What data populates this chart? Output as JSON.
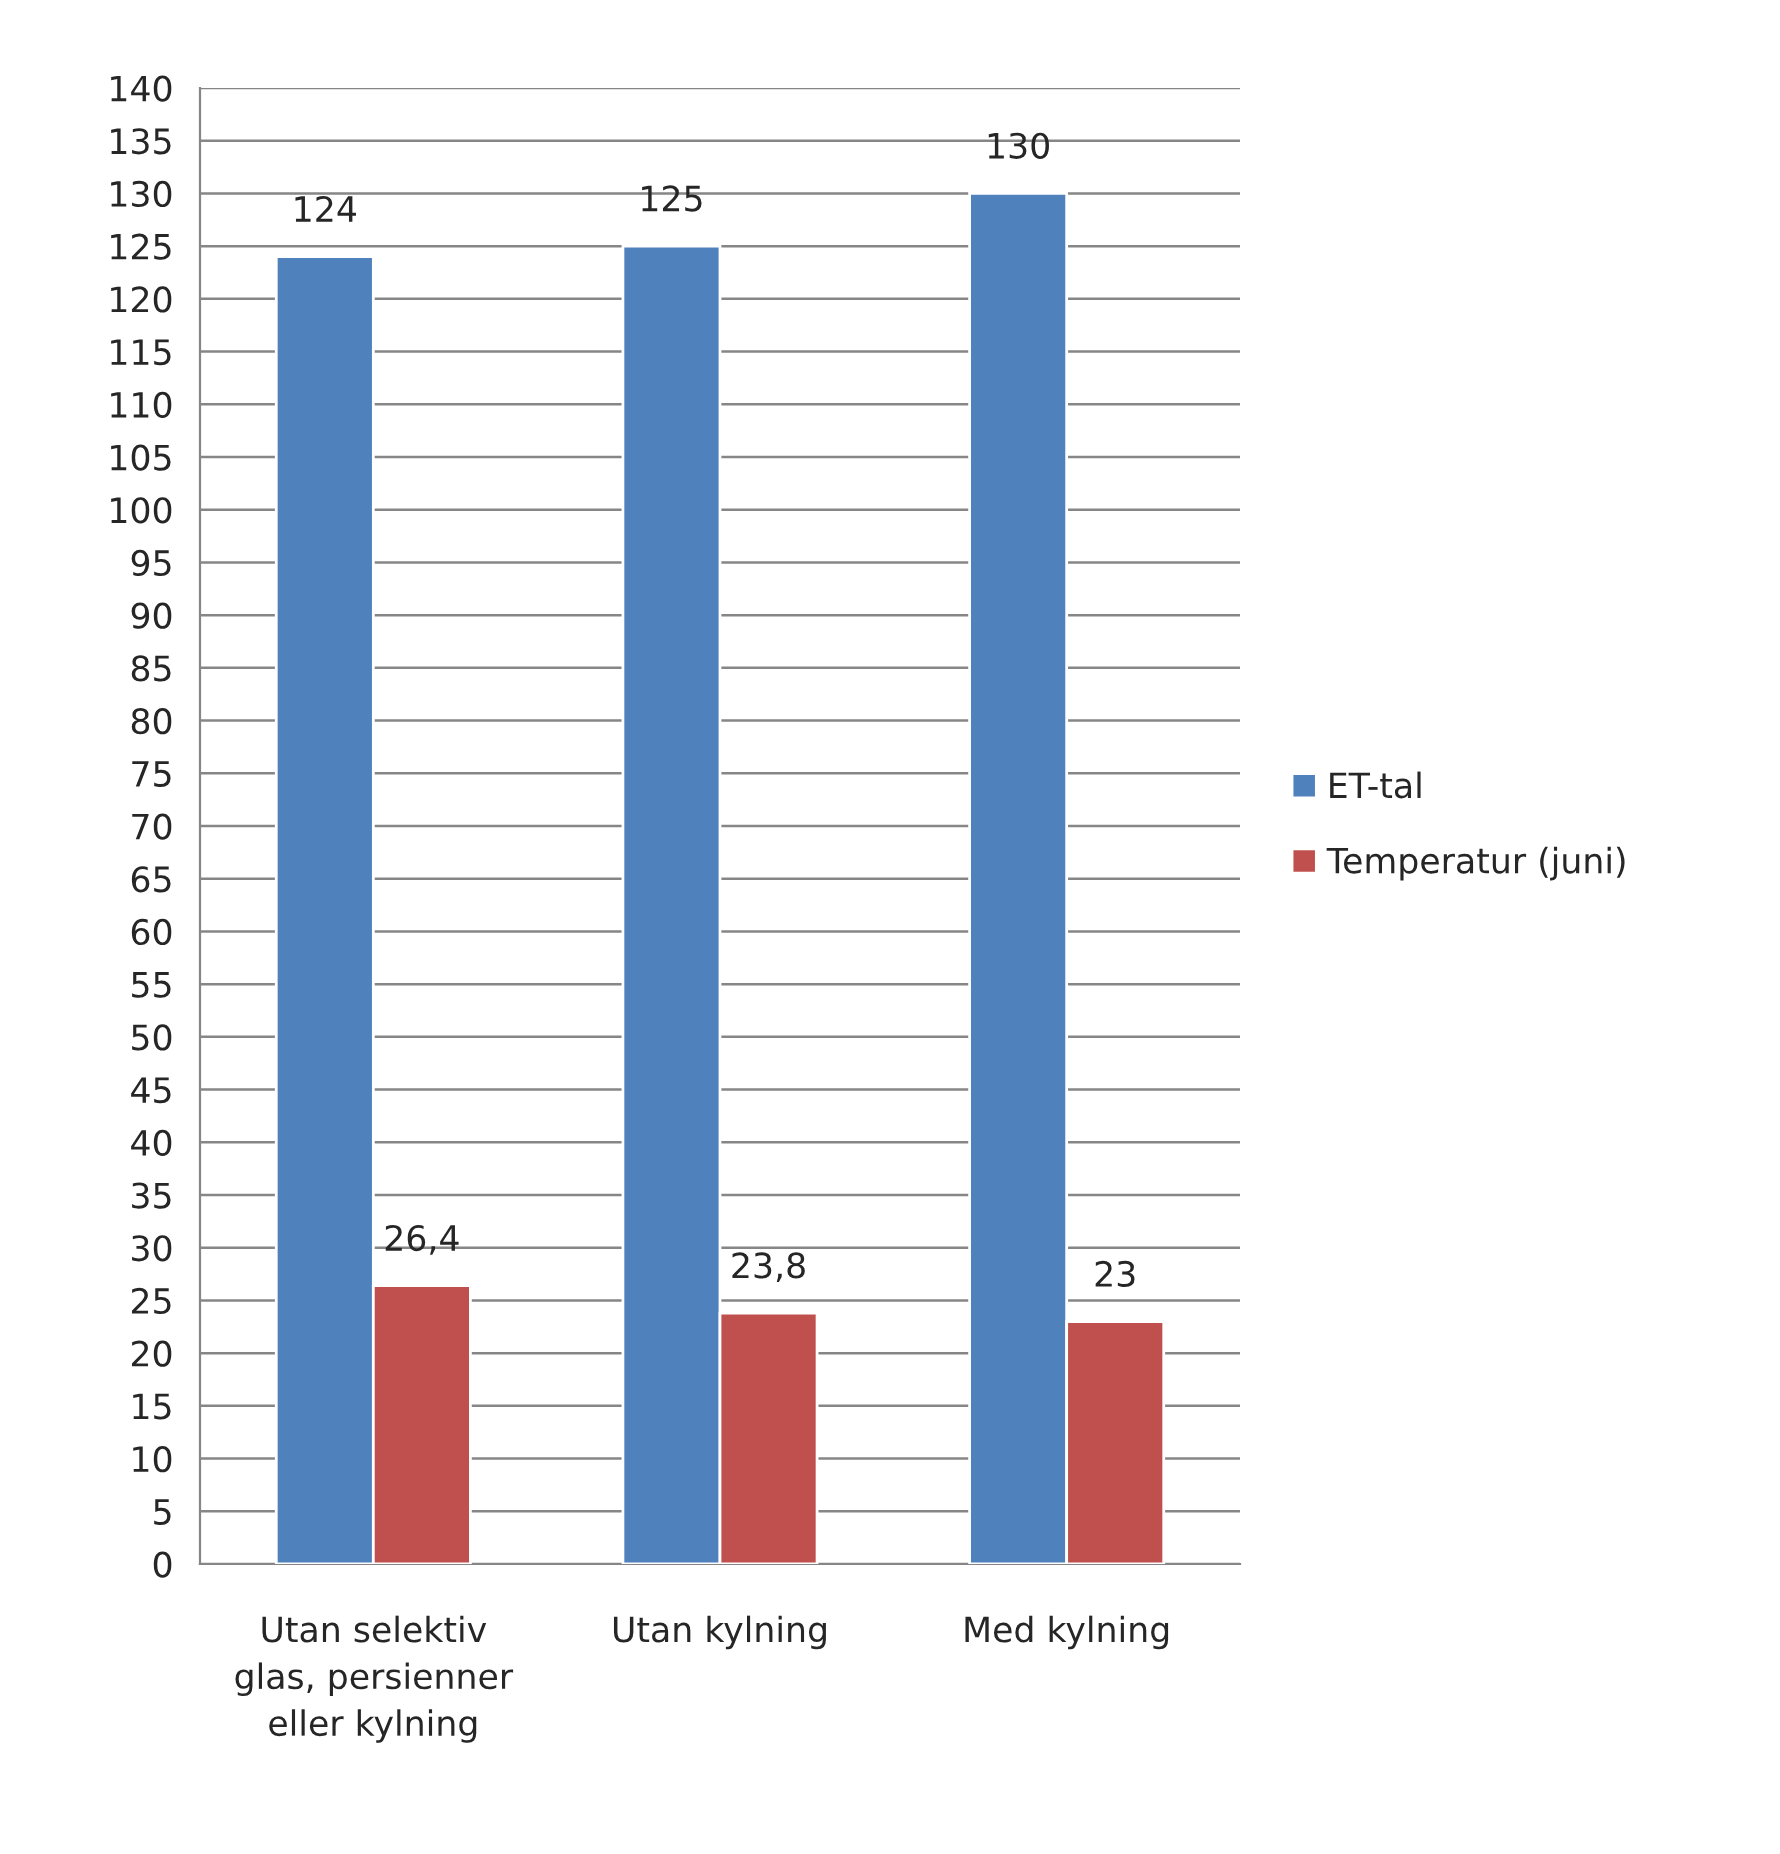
{
  "chart_data": {
    "type": "bar",
    "categories": [
      "Utan selektiv glas, persienner eller kylning",
      "Utan kylning",
      "Med kylning"
    ],
    "series": [
      {
        "name": "ET-tal",
        "color": "#4f81bd",
        "values": [
          124,
          125,
          130
        ],
        "value_labels": [
          "124",
          "125",
          "130"
        ]
      },
      {
        "name": "Temperatur (juni)",
        "color": "#c0504d",
        "values": [
          26.4,
          23.8,
          23
        ],
        "value_labels": [
          "26,4",
          "23,8",
          "23"
        ]
      }
    ],
    "ylim": [
      0,
      140
    ],
    "yticks": [
      0,
      5,
      10,
      15,
      20,
      25,
      30,
      35,
      40,
      45,
      50,
      55,
      60,
      65,
      70,
      75,
      80,
      85,
      90,
      95,
      100,
      105,
      110,
      115,
      120,
      125,
      130,
      135,
      140
    ],
    "grid": "y",
    "legend": "right"
  }
}
